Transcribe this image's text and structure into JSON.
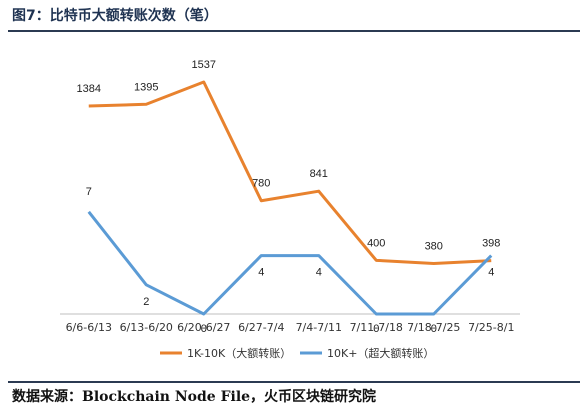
{
  "figure": {
    "title": "图7：比特币大额转账次数（笔）",
    "source": "数据来源：Blockchain Node File，火币区块链研究院"
  },
  "chart_data": {
    "type": "line",
    "title": "",
    "xlabel": "",
    "ylabel": "",
    "categories": [
      "6/6-6/13",
      "6/13-6/20",
      "6/20-6/27",
      "6/27-7/4",
      "7/4-7/11",
      "7/11-7/18",
      "7/18-7/25",
      "7/25-8/1"
    ],
    "series": [
      {
        "name": "1K-10K（大额转账）",
        "values": [
          1384,
          1395,
          1537,
          780,
          841,
          400,
          380,
          398
        ],
        "color": "#e8822e"
      },
      {
        "name": "10K+（超大额转账）",
        "values": [
          7,
          2,
          0,
          4,
          4,
          0,
          0,
          4
        ],
        "color": "#5b9bd5"
      }
    ],
    "legend": "bottom",
    "grid": false
  }
}
